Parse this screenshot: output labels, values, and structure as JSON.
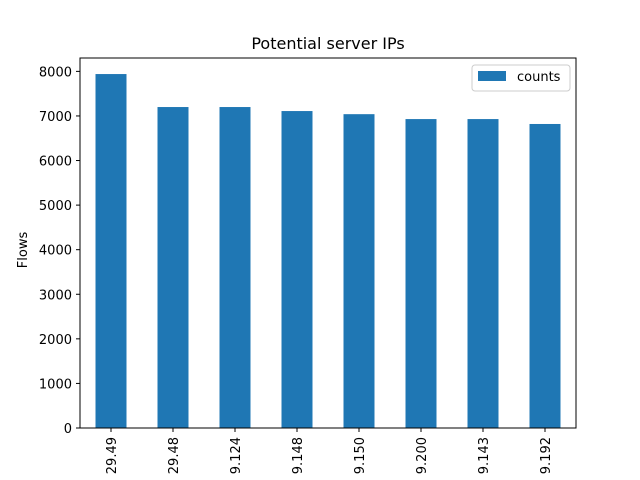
{
  "chart_data": {
    "type": "bar",
    "title": "Potential server IPs",
    "xlabel": "",
    "ylabel": "Flows",
    "categories": [
      "29.49",
      "29.48",
      "9.124",
      "9.148",
      "9.150",
      "9.200",
      "9.143",
      "9.192"
    ],
    "series": [
      {
        "name": "counts",
        "values": [
          7940,
          7200,
          7200,
          7110,
          7040,
          6930,
          6930,
          6820
        ],
        "color": "#1f77b4"
      }
    ],
    "ylim": [
      0,
      8300
    ],
    "yticks": [
      0,
      1000,
      2000,
      3000,
      4000,
      5000,
      6000,
      7000,
      8000
    ],
    "grid": false,
    "legend_position": "top-right"
  }
}
